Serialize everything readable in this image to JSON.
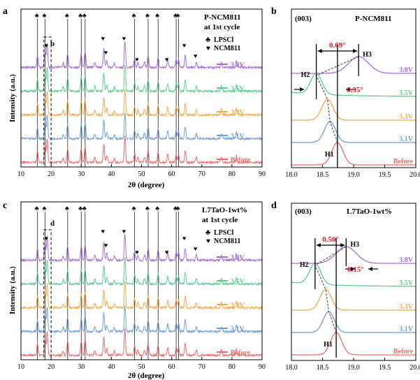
{
  "panels": {
    "a": {
      "letter": "a",
      "title_l1": "P-NCM811",
      "title_l2": "at 1st cycle",
      "inset": "b"
    },
    "b": {
      "letter": "b",
      "plane": "(003)",
      "title": "P-NCM811",
      "shift1": "0.69°",
      "shift2": "0.35°"
    },
    "c": {
      "letter": "c",
      "title_l1": "L7TaO-1wt%",
      "title_l2": "at 1st cycle",
      "inset": "d"
    },
    "d": {
      "letter": "d",
      "plane": "(003)",
      "title": "L7TaO-1wt%",
      "shift1": "0.50°",
      "shift2": "0.15°"
    }
  },
  "legend": {
    "lpscl_symbol": "♣",
    "lpscl": "LPSCl",
    "ncm_symbol": "♥",
    "ncm": "NCM811"
  },
  "peak_labels": [
    "H1",
    "H2",
    "H3"
  ],
  "colors": {
    "Before": "#ef6b6b",
    "3.1V": "#6f9fd8",
    "3.3V": "#f5a94a",
    "3.5V": "#5ccf95",
    "3.8V": "#a86fd8",
    "accent_red": "#e8161d"
  },
  "chart_data": [
    {
      "type": "line",
      "panel": "a",
      "xlabel": "2θ (degree)",
      "ylabel": "Intensity (a.u.)",
      "xlim": [
        10,
        90
      ],
      "x_ticks": [
        10,
        20,
        30,
        40,
        50,
        60,
        70,
        80,
        90
      ],
      "series": [
        {
          "name": "Before"
        },
        {
          "name": "3.1V"
        },
        {
          "name": "3.3V"
        },
        {
          "name": "3.5V"
        },
        {
          "name": "3.8V"
        }
      ],
      "lpscl_peaks_2theta": [
        15.5,
        18.0,
        25.5,
        30.0,
        31.3,
        47.7,
        52.2,
        55.5,
        61.5,
        62.3
      ],
      "ncm_peaks_2theta": [
        18.7,
        37.5,
        38.5,
        44.5,
        48.8,
        58.7,
        64.5,
        68.2
      ]
    },
    {
      "type": "line",
      "panel": "b",
      "xlabel": "",
      "ylabel": "",
      "xlim": [
        18.0,
        20.0
      ],
      "x_ticks": [
        "18.0",
        "18.5",
        "19.0",
        "19.5",
        "20.0"
      ],
      "series": [
        {
          "name": "Before",
          "peak_2theta": 18.74
        },
        {
          "name": "3.1V",
          "peak_2theta": 18.62
        },
        {
          "name": "3.3V",
          "peak_2theta": 18.58
        },
        {
          "name": "3.5V",
          "peak_2theta": 18.4
        },
        {
          "name": "3.8V",
          "peak_2theta": 19.08
        }
      ],
      "annotations": [
        {
          "text": "0.69°",
          "from": 18.4,
          "to": 19.08
        },
        {
          "text": "0.35°",
          "from": 18.4,
          "to": 18.74
        }
      ]
    },
    {
      "type": "line",
      "panel": "c",
      "xlabel": "2θ (degree)",
      "ylabel": "Intensity (a.u.)",
      "xlim": [
        10,
        90
      ],
      "x_ticks": [
        10,
        20,
        30,
        40,
        50,
        60,
        70,
        80,
        90
      ],
      "series": [
        {
          "name": "Before"
        },
        {
          "name": "3.1V"
        },
        {
          "name": "3.3V"
        },
        {
          "name": "3.5V"
        },
        {
          "name": "3.8V"
        }
      ],
      "lpscl_peaks_2theta": [
        15.5,
        18.0,
        25.5,
        30.0,
        31.3,
        47.7,
        52.2,
        55.5,
        61.5,
        62.3
      ],
      "ncm_peaks_2theta": [
        18.7,
        37.5,
        38.5,
        44.5,
        48.8,
        58.7,
        64.5,
        68.2
      ]
    },
    {
      "type": "line",
      "panel": "d",
      "xlabel": "",
      "ylabel": "",
      "xlim": [
        18.0,
        20.0
      ],
      "x_ticks": [
        "18.0",
        "18.5",
        "19.0",
        "19.5",
        "20.0"
      ],
      "series": [
        {
          "name": "Before",
          "peak_2theta": 18.72
        },
        {
          "name": "3.1V",
          "peak_2theta": 18.6
        },
        {
          "name": "3.3V",
          "peak_2theta": 18.55
        },
        {
          "name": "3.5V",
          "peak_2theta": 18.38
        },
        {
          "name": "3.8V",
          "peak_2theta": 18.88
        }
      ],
      "annotations": [
        {
          "text": "0.50°",
          "from": 18.38,
          "to": 18.88
        },
        {
          "text": "0.15°",
          "from": 18.72,
          "to": 18.87
        }
      ]
    }
  ]
}
